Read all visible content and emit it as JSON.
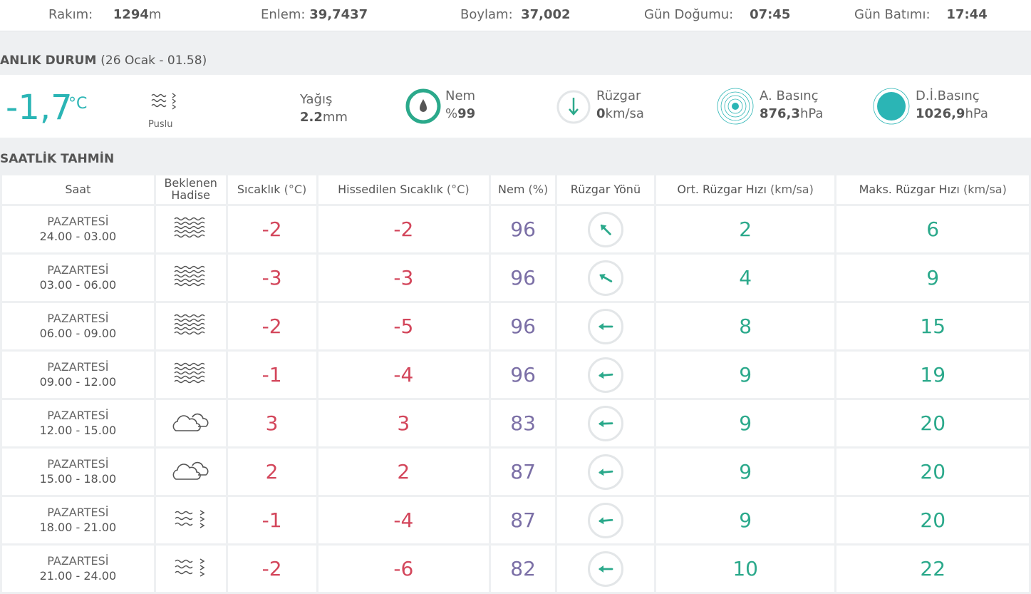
{
  "top": {
    "rakim_label": "Rakım:",
    "rakim_value": "1294",
    "rakim_unit": "m",
    "enlem_label": "Enlem:",
    "enlem_value": "39,7437",
    "boylam_label": "Boylam:",
    "boylam_value": "37,002",
    "gundogumu_label": "Gün Doğumu:",
    "gundogumu_value": "07:45",
    "gunbatimi_label": "Gün Batımı:",
    "gunbatimi_value": "17:44"
  },
  "current": {
    "title": "ANLIK DURUM",
    "subtitle": "(26 Ocak - 01.58)",
    "temperature": "-1,7",
    "temperature_unit": "°C",
    "condition_icon": "fog-drizzle-icon",
    "condition": "Puslu",
    "yagis_label": "Yağış",
    "yagis_value": "2.2",
    "yagis_unit": "mm",
    "nem_label": "Nem",
    "nem_prefix": "%",
    "nem_value": "99",
    "ruzgar_label": "Rüzgar",
    "ruzgar_value": "0",
    "ruzgar_unit": "km/sa",
    "abasinc_label": "A. Basınç",
    "abasinc_value": "876,3",
    "abasinc_unit": "hPa",
    "dibasinc_label": "D.İ.Basınç",
    "dibasinc_value": "1026,9",
    "dibasinc_unit": "hPa"
  },
  "hourly": {
    "title": "SAATLİK TAHMİN",
    "headers": {
      "saat": "Saat",
      "hadise": "Beklenen Hadise",
      "sicaklik": "Sıcaklık",
      "sicaklik_unit": "(°C)",
      "hissedilen": "Hissedilen Sıcaklık",
      "hissedilen_unit": "(°C)",
      "nem": "Nem",
      "nem_unit": "(%)",
      "yon": "Rüzgar Yönü",
      "ort": "Ort. Rüzgar Hızı",
      "ort_unit": "(km/sa)",
      "maks": "Maks. Rüzgar Hızı",
      "maks_unit": "(km/sa)"
    },
    "rows": [
      {
        "day": "PAZARTESİ",
        "time": "24.00 - 03.00",
        "icon": "fog-icon",
        "temp": "-2",
        "feels": "-2",
        "humidity": "96",
        "dir_deg": 315,
        "avg": "2",
        "max": "6"
      },
      {
        "day": "PAZARTESİ",
        "time": "03.00 - 06.00",
        "icon": "fog-icon",
        "temp": "-3",
        "feels": "-3",
        "humidity": "96",
        "dir_deg": 300,
        "avg": "4",
        "max": "9"
      },
      {
        "day": "PAZARTESİ",
        "time": "06.00 - 09.00",
        "icon": "fog-icon",
        "temp": "-2",
        "feels": "-5",
        "humidity": "96",
        "dir_deg": 270,
        "avg": "8",
        "max": "15"
      },
      {
        "day": "PAZARTESİ",
        "time": "09.00 - 12.00",
        "icon": "fog-icon",
        "temp": "-1",
        "feels": "-4",
        "humidity": "96",
        "dir_deg": 265,
        "avg": "9",
        "max": "19"
      },
      {
        "day": "PAZARTESİ",
        "time": "12.00 - 15.00",
        "icon": "cloud-icon",
        "temp": "3",
        "feels": "3",
        "humidity": "83",
        "dir_deg": 268,
        "avg": "9",
        "max": "20"
      },
      {
        "day": "PAZARTESİ",
        "time": "15.00 - 18.00",
        "icon": "cloud-icon",
        "temp": "2",
        "feels": "2",
        "humidity": "87",
        "dir_deg": 265,
        "avg": "9",
        "max": "20"
      },
      {
        "day": "PAZARTESİ",
        "time": "18.00 - 21.00",
        "icon": "fog-drizzle-icon",
        "temp": "-1",
        "feels": "-4",
        "humidity": "87",
        "dir_deg": 265,
        "avg": "9",
        "max": "20"
      },
      {
        "day": "PAZARTESİ",
        "time": "21.00 - 24.00",
        "icon": "fog-drizzle-icon",
        "temp": "-2",
        "feels": "-6",
        "humidity": "82",
        "dir_deg": 270,
        "avg": "10",
        "max": "22"
      }
    ]
  },
  "colors": {
    "accent": "#2bb5b5",
    "temp": "#d3465b",
    "humidity": "#7b6fa6",
    "wind": "#2ba98b"
  }
}
